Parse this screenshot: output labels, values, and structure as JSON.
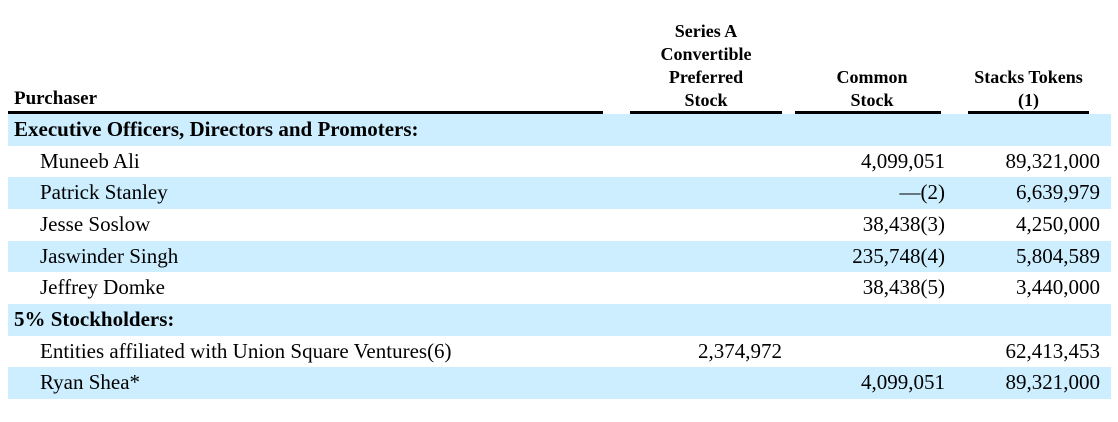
{
  "table": {
    "columns": {
      "purchaser_label": "Purchaser",
      "series_a_lines": [
        "Series A",
        "Convertible",
        "Preferred",
        "Stock"
      ],
      "common_lines": [
        "Common",
        "Stock"
      ],
      "stacks_lines": [
        "Stacks Tokens",
        "(1)"
      ]
    },
    "rows": [
      {
        "name": "Executive Officers, Directors and Promoters:",
        "series_a": "",
        "common": "",
        "stacks": ""
      },
      {
        "name": "Muneeb Ali",
        "series_a": "",
        "common": "4,099,051",
        "stacks": "89,321,000"
      },
      {
        "name": "Patrick Stanley",
        "series_a": "",
        "common": "—(2)",
        "stacks": "6,639,979"
      },
      {
        "name": "Jesse Soslow",
        "series_a": "",
        "common": "38,438(3)",
        "stacks": "4,250,000"
      },
      {
        "name": "Jaswinder Singh",
        "series_a": "",
        "common": "235,748(4)",
        "stacks": "5,804,589"
      },
      {
        "name": "Jeffrey Domke",
        "series_a": "",
        "common": "38,438(5)",
        "stacks": "3,440,000"
      },
      {
        "name": "5% Stockholders:",
        "series_a": "",
        "common": "",
        "stacks": ""
      },
      {
        "name": "Entities affiliated with Union Square Ventures(6)",
        "series_a": "2,374,972",
        "common": "",
        "stacks": "62,413,453"
      },
      {
        "name": "Ryan Shea*",
        "series_a": "",
        "common": "4,099,051",
        "stacks": "89,321,000"
      }
    ],
    "colors": {
      "row_highlight": "#cceeff",
      "text": "#000000",
      "rule": "#000000"
    }
  }
}
